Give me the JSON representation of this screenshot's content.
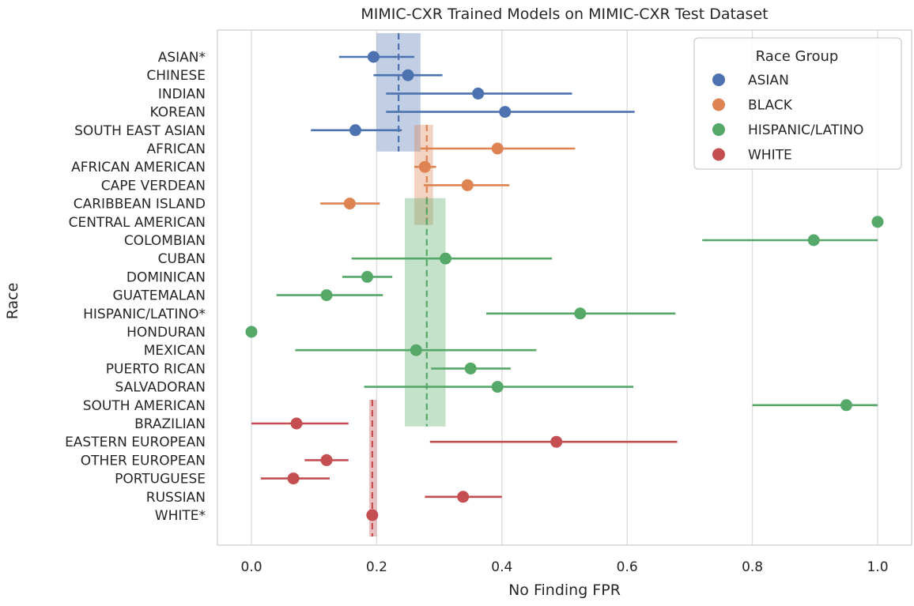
{
  "chart_data": {
    "type": "scatter",
    "subtype": "point-with-error-bars",
    "title": "MIMIC-CXR Trained Models on MIMIC-CXR Test Dataset",
    "xlabel": "No Finding FPR",
    "ylabel": "Race",
    "xlim": [
      -0.05,
      1.03
    ],
    "xticks": [
      "0.0",
      "0.2",
      "0.4",
      "0.6",
      "0.8",
      "1.0"
    ],
    "grid": "vertical",
    "legend": {
      "title": "Race Group",
      "position": "top-right",
      "entries": [
        "ASIAN",
        "BLACK",
        "HISPANIC/LATINO",
        "WHITE"
      ]
    },
    "colors": {
      "ASIAN": "#4c72b0",
      "BLACK": "#dd8452",
      "HISPANIC/LATINO": "#55a868",
      "WHITE": "#c44e52"
    },
    "group_bands": [
      {
        "group": "ASIAN",
        "mean": 0.235,
        "lo": 0.2,
        "hi": 0.27
      },
      {
        "group": "BLACK",
        "mean": 0.28,
        "lo": 0.26,
        "hi": 0.29
      },
      {
        "group": "HISPANIC/LATINO",
        "mean": 0.28,
        "lo": 0.245,
        "hi": 0.31
      },
      {
        "group": "WHITE",
        "mean": 0.193,
        "lo": 0.188,
        "hi": 0.2
      }
    ],
    "points": [
      {
        "category": "ASIAN*",
        "group": "ASIAN",
        "x": 0.195,
        "lo": 0.14,
        "hi": 0.26
      },
      {
        "category": "CHINESE",
        "group": "ASIAN",
        "x": 0.25,
        "lo": 0.195,
        "hi": 0.305
      },
      {
        "category": "INDIAN",
        "group": "ASIAN",
        "x": 0.362,
        "lo": 0.215,
        "hi": 0.512
      },
      {
        "category": "KOREAN",
        "group": "ASIAN",
        "x": 0.405,
        "lo": 0.215,
        "hi": 0.612
      },
      {
        "category": "SOUTH EAST ASIAN",
        "group": "ASIAN",
        "x": 0.166,
        "lo": 0.095,
        "hi": 0.24
      },
      {
        "category": "AFRICAN",
        "group": "BLACK",
        "x": 0.393,
        "lo": 0.27,
        "hi": 0.517
      },
      {
        "category": "AFRICAN AMERICAN",
        "group": "BLACK",
        "x": 0.277,
        "lo": 0.26,
        "hi": 0.295
      },
      {
        "category": "CAPE VERDEAN",
        "group": "BLACK",
        "x": 0.345,
        "lo": 0.275,
        "hi": 0.412
      },
      {
        "category": "CARIBBEAN ISLAND",
        "group": "BLACK",
        "x": 0.157,
        "lo": 0.11,
        "hi": 0.205
      },
      {
        "category": "CENTRAL AMERICAN",
        "group": "HISPANIC/LATINO",
        "x": 1.0,
        "lo": null,
        "hi": null
      },
      {
        "category": "COLOMBIAN",
        "group": "HISPANIC/LATINO",
        "x": 0.898,
        "lo": 0.72,
        "hi": 1.0
      },
      {
        "category": "CUBAN",
        "group": "HISPANIC/LATINO",
        "x": 0.31,
        "lo": 0.16,
        "hi": 0.48
      },
      {
        "category": "DOMINICAN",
        "group": "HISPANIC/LATINO",
        "x": 0.185,
        "lo": 0.145,
        "hi": 0.225
      },
      {
        "category": "GUATEMALAN",
        "group": "HISPANIC/LATINO",
        "x": 0.12,
        "lo": 0.04,
        "hi": 0.21
      },
      {
        "category": "HISPANIC/LATINO*",
        "group": "HISPANIC/LATINO",
        "x": 0.525,
        "lo": 0.375,
        "hi": 0.677
      },
      {
        "category": "HONDURAN",
        "group": "HISPANIC/LATINO",
        "x": 0.0,
        "lo": null,
        "hi": null
      },
      {
        "category": "MEXICAN",
        "group": "HISPANIC/LATINO",
        "x": 0.263,
        "lo": 0.07,
        "hi": 0.455
      },
      {
        "category": "PUERTO RICAN",
        "group": "HISPANIC/LATINO",
        "x": 0.35,
        "lo": 0.287,
        "hi": 0.414
      },
      {
        "category": "SALVADORAN",
        "group": "HISPANIC/LATINO",
        "x": 0.393,
        "lo": 0.18,
        "hi": 0.61
      },
      {
        "category": "SOUTH AMERICAN",
        "group": "HISPANIC/LATINO",
        "x": 0.95,
        "lo": 0.8,
        "hi": 1.0
      },
      {
        "category": "BRAZILIAN",
        "group": "WHITE",
        "x": 0.072,
        "lo": 0.0,
        "hi": 0.155
      },
      {
        "category": "EASTERN EUROPEAN",
        "group": "WHITE",
        "x": 0.487,
        "lo": 0.285,
        "hi": 0.68
      },
      {
        "category": "OTHER EUROPEAN",
        "group": "WHITE",
        "x": 0.12,
        "lo": 0.085,
        "hi": 0.155
      },
      {
        "category": "PORTUGUESE",
        "group": "WHITE",
        "x": 0.067,
        "lo": 0.015,
        "hi": 0.125
      },
      {
        "category": "RUSSIAN",
        "group": "WHITE",
        "x": 0.338,
        "lo": 0.277,
        "hi": 0.4
      },
      {
        "category": "WHITE*",
        "group": "WHITE",
        "x": 0.193,
        "lo": null,
        "hi": null
      }
    ]
  }
}
